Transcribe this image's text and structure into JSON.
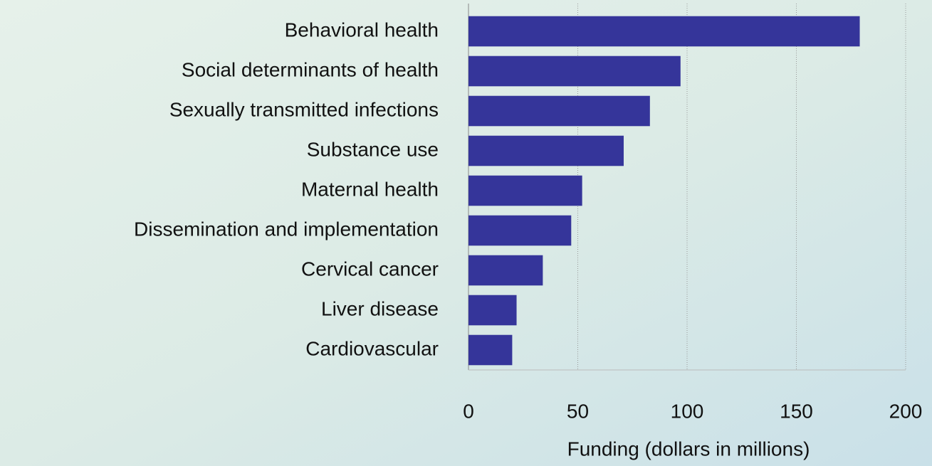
{
  "chart_data": {
    "type": "bar",
    "orientation": "horizontal",
    "x_label": "Funding (dollars in millions)",
    "categories": [
      "Behavioral health",
      "Social determinants of health",
      "Sexually transmitted infections",
      "Substance use",
      "Maternal health",
      "Dissemination and implementation",
      "Cervical cancer",
      "Liver disease",
      "Cardiovascular"
    ],
    "values": [
      179,
      97,
      83,
      71,
      52,
      47,
      34,
      22,
      20
    ],
    "color": "#35359a",
    "xlim": [
      0,
      200
    ],
    "xticks": [
      0,
      50,
      100,
      150,
      200
    ],
    "grid": true
  }
}
